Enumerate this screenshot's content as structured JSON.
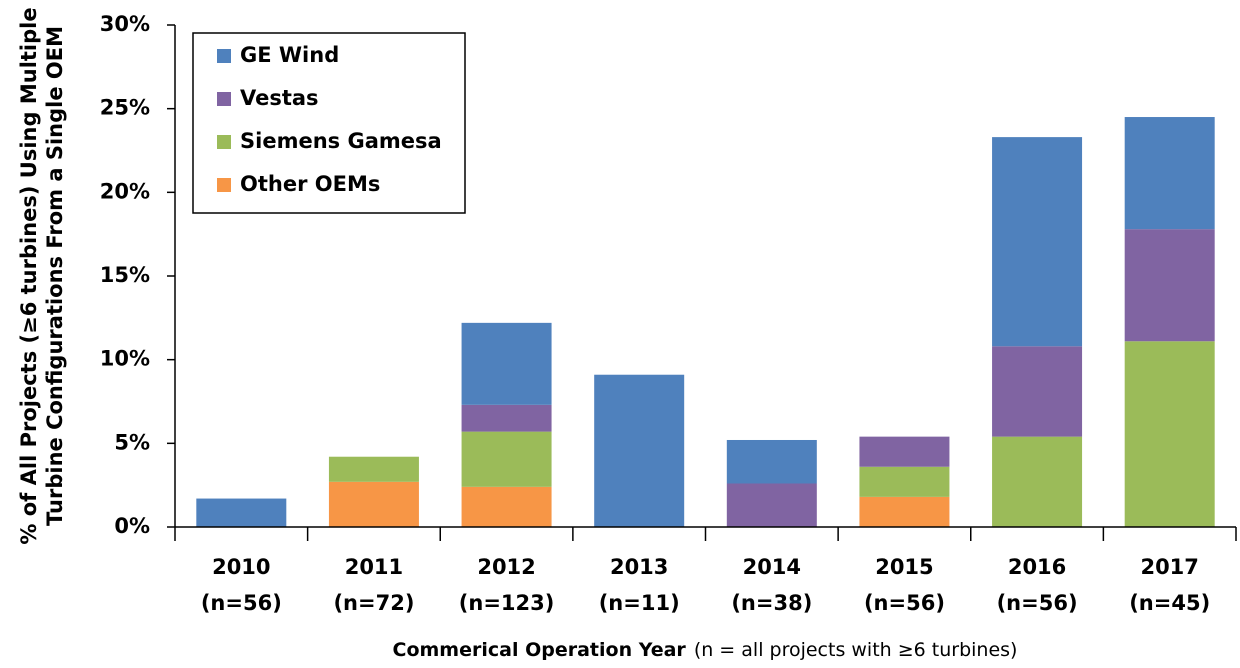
{
  "chart_data": {
    "type": "stacked_bar",
    "ylabel": [
      "% of All Projects (≥6 turbines) Using Multiple",
      "Turbine Configurations From a Single OEM"
    ],
    "xlabel": "Commerical Operation Year",
    "xlabel_note": "(n = all projects with ≥6 turbines)",
    "categories": [
      "2010",
      "2011",
      "2012",
      "2013",
      "2014",
      "2015",
      "2016",
      "2017"
    ],
    "category_notes": [
      "(n=56)",
      "(n=72)",
      "(n=123)",
      "(n=11)",
      "(n=38)",
      "(n=56)",
      "(n=56)",
      "(n=45)"
    ],
    "series": [
      {
        "name": "Other OEMs",
        "color": "#f79646",
        "values": [
          0,
          2.7,
          2.4,
          0,
          0,
          1.8,
          0,
          0
        ]
      },
      {
        "name": "Siemens Gamesa",
        "color": "#9bbb59",
        "values": [
          0,
          1.5,
          3.3,
          0,
          0,
          1.8,
          5.4,
          11.1
        ]
      },
      {
        "name": "Vestas",
        "color": "#8064a2",
        "values": [
          0,
          0,
          1.6,
          0,
          2.6,
          1.8,
          5.4,
          6.7
        ]
      },
      {
        "name": "GE Wind",
        "color": "#4f81bd",
        "values": [
          1.7,
          0,
          4.9,
          9.1,
          2.6,
          0,
          12.5,
          6.7
        ]
      }
    ],
    "ylim": [
      0,
      30
    ],
    "yticks": [
      {
        "value": 0,
        "label": "0%"
      },
      {
        "value": 5,
        "label": "5%"
      },
      {
        "value": 10,
        "label": "10%"
      },
      {
        "value": 15,
        "label": "15%"
      },
      {
        "value": 20,
        "label": "20%"
      },
      {
        "value": 25,
        "label": "25%"
      },
      {
        "value": 30,
        "label": "30%"
      }
    ],
    "grid": false,
    "legend": "top-left"
  }
}
